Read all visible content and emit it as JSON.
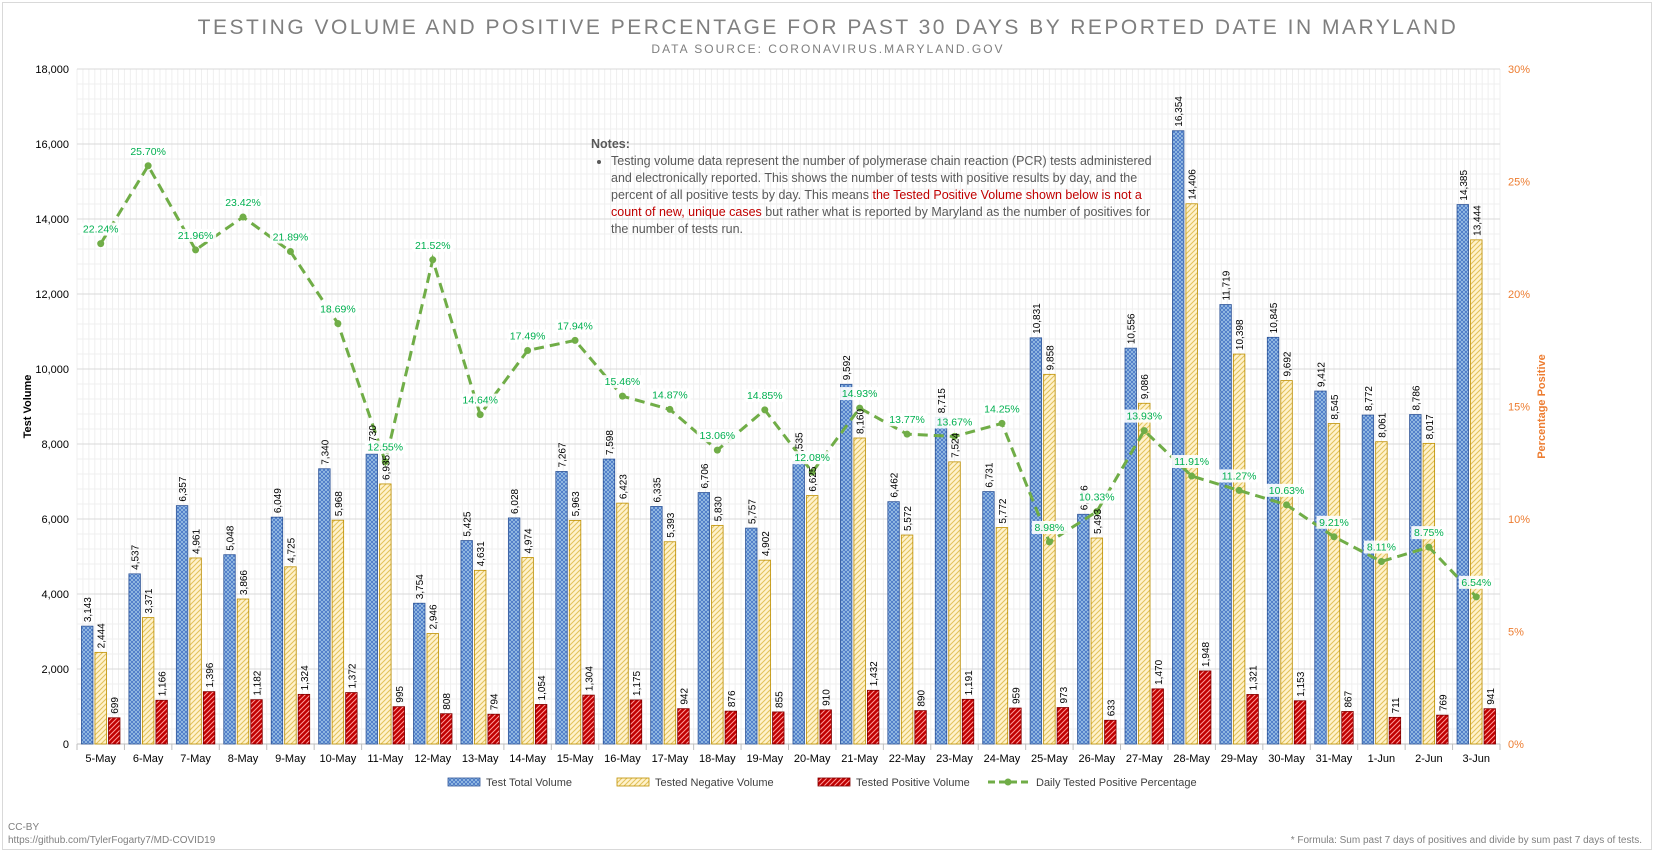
{
  "chart_data": {
    "type": "bar",
    "title": "TESTING VOLUME AND POSITIVE PERCENTAGE FOR PAST 30 DAYS BY REPORTED DATE IN MARYLAND",
    "subtitle": "DATA SOURCE: CORONAVIRUS.MARYLAND.GOV",
    "ylabel": "Test Volume",
    "y2label": "Percentage Positive",
    "ylim": [
      0,
      18000
    ],
    "y2lim": [
      0,
      30
    ],
    "yticks": [
      0,
      2000,
      4000,
      6000,
      8000,
      10000,
      12000,
      14000,
      16000,
      18000
    ],
    "y2ticks": [
      0,
      5,
      10,
      15,
      20,
      25,
      30
    ],
    "ytick_labels": [
      "0",
      "2,000",
      "4,000",
      "6,000",
      "8,000",
      "10,000",
      "12,000",
      "14,000",
      "16,000",
      "18,000"
    ],
    "y2tick_labels": [
      "0%",
      "5%",
      "10%",
      "15%",
      "20%",
      "25%",
      "30%"
    ],
    "grid": true,
    "legend_position": "bottom",
    "categories": [
      "5-May",
      "6-May",
      "7-May",
      "8-May",
      "9-May",
      "10-May",
      "11-May",
      "12-May",
      "13-May",
      "14-May",
      "15-May",
      "16-May",
      "17-May",
      "18-May",
      "19-May",
      "20-May",
      "21-May",
      "22-May",
      "23-May",
      "24-May",
      "25-May",
      "26-May",
      "27-May",
      "28-May",
      "29-May",
      "30-May",
      "31-May",
      "1-Jun",
      "2-Jun",
      "3-Jun"
    ],
    "series": [
      {
        "name": "Test Total Volume",
        "type": "bar",
        "color": "#4472c4",
        "values": [
          3143,
          4537,
          6357,
          5048,
          6049,
          7340,
          7730,
          3754,
          5425,
          6028,
          7267,
          7598,
          6335,
          6706,
          5757,
          7535,
          9592,
          6462,
          8715,
          6731,
          10831,
          6126,
          10556,
          16354,
          11719,
          10845,
          9412,
          8772,
          8786,
          14385
        ],
        "labels": [
          "3,143",
          "4,537",
          "6,357",
          "5,048",
          "6,049",
          "7,340",
          "7,730",
          "3,754",
          "5,425",
          "6,028",
          "7,267",
          "7,598",
          "6,335",
          "6,706",
          "5,757",
          "7,535",
          "9,592",
          "6,462",
          "8,715",
          "6,731",
          "10,831",
          "6,126",
          "10,556",
          "16,354",
          "11,719",
          "10,845",
          "9,412",
          "8,772",
          "8,786",
          "14,385"
        ]
      },
      {
        "name": "Tested Negative Volume",
        "type": "bar",
        "color": "#ffe699",
        "values": [
          2444,
          3371,
          4961,
          3866,
          4725,
          5968,
          6935,
          2946,
          4631,
          4974,
          5963,
          6423,
          5393,
          5830,
          4902,
          6625,
          8160,
          5572,
          7524,
          5772,
          9858,
          5493,
          9086,
          14406,
          10398,
          9692,
          8545,
          8061,
          8017,
          13444
        ],
        "labels": [
          "2,444",
          "3,371",
          "4,961",
          "3,866",
          "4,725",
          "5,968",
          "6,935",
          "2,946",
          "4,631",
          "4,974",
          "5,963",
          "6,423",
          "5,393",
          "5,830",
          "4,902",
          "6,625",
          "8,160",
          "5,572",
          "7,524",
          "5,772",
          "9,858",
          "5,493",
          "9,086",
          "14,406",
          "10,398",
          "9,692",
          "8,545",
          "8,061",
          "8,017",
          "13,444"
        ]
      },
      {
        "name": "Tested Positive Volume",
        "type": "bar",
        "color": "#c00000",
        "values": [
          699,
          1166,
          1396,
          1182,
          1324,
          1372,
          995,
          808,
          794,
          1054,
          1304,
          1175,
          942,
          876,
          855,
          910,
          1432,
          890,
          1191,
          959,
          973,
          633,
          1470,
          1948,
          1321,
          1153,
          867,
          711,
          769,
          941
        ],
        "labels": [
          "699",
          "1,166",
          "1,396",
          "1,182",
          "1,324",
          "1,372",
          "995",
          "808",
          "794",
          "1,054",
          "1,304",
          "1,175",
          "942",
          "876",
          "855",
          "910",
          "1,432",
          "890",
          "1,191",
          "959",
          "973",
          "633",
          "1,470",
          "1,948",
          "1,321",
          "1,153",
          "867",
          "711",
          "769",
          "941"
        ]
      },
      {
        "name": "Daily Tested Positive Percentage",
        "type": "line",
        "axis": "y2",
        "color": "#70ad47",
        "values": [
          22.24,
          25.7,
          21.96,
          23.42,
          21.89,
          18.69,
          12.55,
          21.52,
          14.64,
          17.49,
          17.94,
          15.46,
          14.87,
          13.06,
          14.85,
          12.08,
          14.93,
          13.77,
          13.67,
          14.25,
          8.98,
          10.33,
          13.93,
          11.91,
          11.27,
          10.63,
          9.21,
          8.11,
          8.75,
          6.54
        ],
        "labels": [
          "22.24%",
          "25.70%",
          "21.96%",
          "23.42%",
          "21.89%",
          "18.69%",
          "12.55%",
          "21.52%",
          "14.64%",
          "17.49%",
          "17.94%",
          "15.46%",
          "14.87%",
          "13.06%",
          "14.85%",
          "12.08%",
          "14.93%",
          "13.77%",
          "13.67%",
          "14.25%",
          "8.98%",
          "10.33%",
          "13.93%",
          "11.91%",
          "11.27%",
          "10.63%",
          "9.21%",
          "8.11%",
          "8.75%",
          "6.54%"
        ]
      }
    ],
    "notes": {
      "heading": "Notes:",
      "text_before": "Testing volume data represent the number of polymerase chain reaction (PCR) tests administered and electronically reported. This shows the number of tests with positive results by day, and the percent of all positive tests by day. This means ",
      "text_highlight": "the Tested Positive Volume shown below is not a count of new, unique cases",
      "text_after": " but rather what is reported by Maryland as the number of positives for the number of tests run."
    },
    "footnote": "* Formula: Sum past 7 days of positives and divide by sum past 7 days of tests."
  },
  "footer": {
    "license": "CC-BY",
    "url": "https://github.com/TylerFogarty7/MD-COVID19"
  }
}
